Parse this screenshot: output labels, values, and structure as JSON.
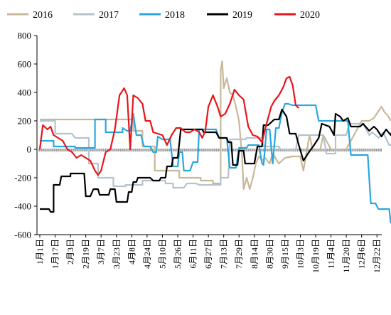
{
  "chart_data": {
    "type": "line",
    "title": "",
    "xlabel": "",
    "ylabel": "",
    "ylim": [
      -600,
      800
    ],
    "yticks": [
      800,
      600,
      400,
      200,
      0,
      -200,
      -400,
      -600
    ],
    "grid": false,
    "legend_position": "top",
    "categories": [
      "1月1日",
      "1月17日",
      "2月3日",
      "2月19日",
      "3月7日",
      "3月23日",
      "4月8日",
      "4月24日",
      "5月10日",
      "5月26日",
      "6月11日",
      "6月27日",
      "7月13日",
      "7月29日",
      "8月14日",
      "8月30日",
      "9月15日",
      "10月3日",
      "10月19日",
      "11月4日",
      "11月20日",
      "12月6日",
      "12月22日"
    ],
    "series": [
      {
        "name": "2016",
        "color": "#c8b89a",
        "points": [
          [
            0,
            210
          ],
          [
            6.1,
            210
          ],
          [
            6.1,
            130
          ],
          [
            6.7,
            130
          ],
          [
            6.7,
            20
          ],
          [
            7.5,
            20
          ],
          [
            7.5,
            -150
          ],
          [
            9.1,
            -150
          ],
          [
            9.1,
            -200
          ],
          [
            10.5,
            -200
          ],
          [
            10.5,
            -220
          ],
          [
            11.3,
            -220
          ],
          [
            11.3,
            -240
          ],
          [
            11.8,
            -240
          ],
          [
            11.8,
            550
          ],
          [
            11.9,
            620
          ],
          [
            12.0,
            430
          ],
          [
            12.2,
            500
          ],
          [
            12.4,
            400
          ],
          [
            12.6,
            380
          ],
          [
            12.8,
            300
          ],
          [
            13.0,
            200
          ],
          [
            13.2,
            -50
          ],
          [
            13.3,
            -280
          ],
          [
            13.5,
            -200
          ],
          [
            13.7,
            -280
          ],
          [
            13.9,
            -200
          ],
          [
            14.1,
            -100
          ],
          [
            14.3,
            -50
          ],
          [
            14.5,
            -80
          ],
          [
            14.7,
            -60
          ],
          [
            15.0,
            -100
          ],
          [
            15.2,
            -30
          ],
          [
            15.6,
            -100
          ],
          [
            16.0,
            -60
          ],
          [
            16.5,
            -50
          ],
          [
            17.0,
            -50
          ],
          [
            17.2,
            -150
          ],
          [
            17.6,
            100
          ],
          [
            17.8,
            0
          ],
          [
            18.3,
            0
          ],
          [
            18.5,
            100
          ],
          [
            19.0,
            0
          ],
          [
            19.6,
            0
          ],
          [
            20.0,
            0
          ],
          [
            20.5,
            100
          ],
          [
            21.0,
            200
          ],
          [
            21.5,
            200
          ],
          [
            21.8,
            220
          ],
          [
            22.3,
            300
          ],
          [
            22.5,
            260
          ],
          [
            22.7,
            240
          ],
          [
            22.9,
            200
          ]
        ]
      },
      {
        "name": "2017",
        "color": "#b5c3ce",
        "points": [
          [
            0,
            200
          ],
          [
            1.0,
            200
          ],
          [
            1.0,
            110
          ],
          [
            2.1,
            110
          ],
          [
            2.3,
            80
          ],
          [
            3.2,
            80
          ],
          [
            3.2,
            -100
          ],
          [
            3.8,
            -100
          ],
          [
            3.8,
            -200
          ],
          [
            4.8,
            -200
          ],
          [
            4.8,
            -260
          ],
          [
            5.6,
            -260
          ],
          [
            5.6,
            -250
          ],
          [
            6.7,
            -250
          ],
          [
            6.7,
            -220
          ],
          [
            8.2,
            -220
          ],
          [
            8.2,
            -240
          ],
          [
            8.7,
            -240
          ],
          [
            8.7,
            -270
          ],
          [
            9.4,
            -270
          ],
          [
            9.6,
            -240
          ],
          [
            10.2,
            -240
          ],
          [
            10.4,
            -250
          ],
          [
            11.3,
            -250
          ],
          [
            11.3,
            -250
          ],
          [
            11.8,
            -250
          ],
          [
            11.8,
            -200
          ],
          [
            12.3,
            -200
          ],
          [
            12.4,
            70
          ],
          [
            13.4,
            70
          ],
          [
            13.5,
            80
          ],
          [
            14.5,
            80
          ],
          [
            14.6,
            20
          ],
          [
            15.6,
            20
          ],
          [
            15.7,
            0
          ],
          [
            16.7,
            0
          ],
          [
            16.9,
            100
          ],
          [
            17.7,
            100
          ],
          [
            17.9,
            100
          ],
          [
            18.5,
            100
          ],
          [
            18.7,
            -30
          ],
          [
            19.3,
            -30
          ],
          [
            19.3,
            100
          ],
          [
            20.0,
            100
          ],
          [
            20.2,
            180
          ],
          [
            20.9,
            180
          ],
          [
            21.1,
            180
          ],
          [
            21.5,
            100
          ],
          [
            21.7,
            120
          ],
          [
            22.1,
            80
          ],
          [
            22.4,
            120
          ],
          [
            22.8,
            30
          ],
          [
            23.0,
            30
          ]
        ]
      },
      {
        "name": "2018",
        "color": "#2aa7df",
        "points": [
          [
            0,
            60
          ],
          [
            0.9,
            60
          ],
          [
            0.9,
            20
          ],
          [
            2.3,
            20
          ],
          [
            2.3,
            10
          ],
          [
            3.6,
            10
          ],
          [
            3.6,
            210
          ],
          [
            4.3,
            210
          ],
          [
            4.3,
            120
          ],
          [
            5.4,
            120
          ],
          [
            5.4,
            150
          ],
          [
            5.7,
            130
          ],
          [
            5.9,
            130
          ],
          [
            6.1,
            250
          ],
          [
            6.3,
            100
          ],
          [
            6.6,
            100
          ],
          [
            6.8,
            20
          ],
          [
            7.2,
            20
          ],
          [
            7.4,
            -20
          ],
          [
            7.6,
            -20
          ],
          [
            7.7,
            90
          ],
          [
            8.0,
            70
          ],
          [
            8.5,
            70
          ],
          [
            8.7,
            -120
          ],
          [
            9.0,
            -120
          ],
          [
            9.1,
            -20
          ],
          [
            9.3,
            -20
          ],
          [
            9.4,
            -150
          ],
          [
            9.8,
            -150
          ],
          [
            10.0,
            -90
          ],
          [
            10.3,
            -90
          ],
          [
            10.4,
            140
          ],
          [
            11.5,
            140
          ],
          [
            11.7,
            80
          ],
          [
            12.2,
            80
          ],
          [
            12.4,
            -130
          ],
          [
            12.8,
            -130
          ],
          [
            13.0,
            10
          ],
          [
            13.5,
            10
          ],
          [
            13.6,
            30
          ],
          [
            14.3,
            30
          ],
          [
            14.5,
            -100
          ],
          [
            14.6,
            -110
          ],
          [
            14.8,
            140
          ],
          [
            15.0,
            140
          ],
          [
            15.2,
            -100
          ],
          [
            15.4,
            150
          ],
          [
            15.6,
            150
          ],
          [
            15.8,
            260
          ],
          [
            16.0,
            320
          ],
          [
            16.2,
            320
          ],
          [
            16.5,
            310
          ],
          [
            17.1,
            310
          ],
          [
            17.3,
            310
          ],
          [
            17.5,
            310
          ],
          [
            18.0,
            310
          ],
          [
            18.2,
            200
          ],
          [
            19.3,
            200
          ],
          [
            19.7,
            200
          ],
          [
            20.1,
            200
          ],
          [
            20.3,
            -40
          ],
          [
            20.6,
            -40
          ],
          [
            20.8,
            -40
          ],
          [
            21.4,
            -40
          ],
          [
            21.6,
            -380
          ],
          [
            21.9,
            -380
          ],
          [
            22.1,
            -420
          ],
          [
            22.8,
            -420
          ],
          [
            22.9,
            -520
          ]
        ]
      },
      {
        "name": "2019",
        "color": "#000000",
        "points": [
          [
            0,
            -420
          ],
          [
            0.6,
            -420
          ],
          [
            0.7,
            -440
          ],
          [
            0.9,
            -440
          ],
          [
            0.9,
            -250
          ],
          [
            1.3,
            -250
          ],
          [
            1.4,
            -190
          ],
          [
            2.0,
            -190
          ],
          [
            2.0,
            -170
          ],
          [
            2.9,
            -170
          ],
          [
            3.0,
            -330
          ],
          [
            3.3,
            -330
          ],
          [
            3.5,
            -280
          ],
          [
            3.8,
            -280
          ],
          [
            3.9,
            -320
          ],
          [
            4.5,
            -320
          ],
          [
            4.6,
            -280
          ],
          [
            4.9,
            -280
          ],
          [
            5.0,
            -370
          ],
          [
            5.7,
            -370
          ],
          [
            5.8,
            -300
          ],
          [
            6.0,
            -300
          ],
          [
            6.1,
            -230
          ],
          [
            6.3,
            -230
          ],
          [
            6.4,
            -200
          ],
          [
            7.2,
            -200
          ],
          [
            7.4,
            -220
          ],
          [
            7.8,
            -220
          ],
          [
            7.9,
            -200
          ],
          [
            8.2,
            -200
          ],
          [
            8.3,
            -120
          ],
          [
            8.6,
            -120
          ],
          [
            8.7,
            -60
          ],
          [
            9.0,
            -60
          ],
          [
            9.2,
            140
          ],
          [
            10.6,
            140
          ],
          [
            10.7,
            120
          ],
          [
            11.5,
            120
          ],
          [
            11.7,
            80
          ],
          [
            12.2,
            80
          ],
          [
            12.3,
            50
          ],
          [
            12.5,
            50
          ],
          [
            12.6,
            -110
          ],
          [
            12.9,
            -110
          ],
          [
            13.0,
            -10
          ],
          [
            13.3,
            -10
          ],
          [
            13.4,
            -100
          ],
          [
            14.0,
            -100
          ],
          [
            14.2,
            20
          ],
          [
            14.5,
            20
          ],
          [
            14.6,
            170
          ],
          [
            14.9,
            170
          ],
          [
            15.3,
            210
          ],
          [
            15.6,
            210
          ],
          [
            15.8,
            280
          ],
          [
            16.1,
            230
          ],
          [
            16.3,
            110
          ],
          [
            16.7,
            110
          ],
          [
            16.9,
            30
          ],
          [
            17.2,
            -80
          ],
          [
            17.5,
            -30
          ],
          [
            17.9,
            30
          ],
          [
            18.2,
            80
          ],
          [
            18.4,
            180
          ],
          [
            18.9,
            160
          ],
          [
            19.2,
            100
          ],
          [
            19.3,
            250
          ],
          [
            19.6,
            230
          ],
          [
            19.8,
            200
          ],
          [
            20.1,
            220
          ],
          [
            20.3,
            160
          ],
          [
            20.9,
            160
          ],
          [
            21.1,
            180
          ],
          [
            21.5,
            130
          ],
          [
            21.8,
            160
          ],
          [
            22.0,
            140
          ],
          [
            22.3,
            90
          ],
          [
            22.6,
            140
          ],
          [
            22.9,
            100
          ],
          [
            23.0,
            130
          ]
        ]
      },
      {
        "name": "2020",
        "color": "#e8141b",
        "points": [
          [
            0,
            0
          ],
          [
            0.2,
            170
          ],
          [
            0.5,
            140
          ],
          [
            0.7,
            160
          ],
          [
            0.9,
            100
          ],
          [
            1.2,
            80
          ],
          [
            1.5,
            60
          ],
          [
            1.8,
            0
          ],
          [
            2.1,
            -20
          ],
          [
            2.4,
            -60
          ],
          [
            2.7,
            -40
          ],
          [
            3.0,
            -60
          ],
          [
            3.3,
            -80
          ],
          [
            3.6,
            -150
          ],
          [
            3.8,
            -180
          ],
          [
            4.0,
            -150
          ],
          [
            4.3,
            -20
          ],
          [
            4.6,
            0
          ],
          [
            4.9,
            140
          ],
          [
            5.2,
            380
          ],
          [
            5.5,
            430
          ],
          [
            5.7,
            380
          ],
          [
            5.9,
            0
          ],
          [
            6.1,
            380
          ],
          [
            6.4,
            360
          ],
          [
            6.7,
            320
          ],
          [
            6.9,
            200
          ],
          [
            7.2,
            200
          ],
          [
            7.4,
            120
          ],
          [
            7.7,
            110
          ],
          [
            8.0,
            100
          ],
          [
            8.3,
            30
          ],
          [
            8.6,
            100
          ],
          [
            8.9,
            150
          ],
          [
            9.2,
            150
          ],
          [
            9.5,
            120
          ],
          [
            9.8,
            120
          ],
          [
            10.1,
            140
          ],
          [
            10.4,
            120
          ],
          [
            10.6,
            80
          ],
          [
            10.8,
            130
          ],
          [
            11.0,
            300
          ],
          [
            11.3,
            380
          ],
          [
            11.6,
            300
          ],
          [
            11.8,
            230
          ],
          [
            12.1,
            250
          ],
          [
            12.4,
            320
          ],
          [
            12.7,
            420
          ],
          [
            13.0,
            380
          ],
          [
            13.3,
            350
          ],
          [
            13.6,
            160
          ],
          [
            13.9,
            100
          ],
          [
            14.2,
            90
          ],
          [
            14.5,
            50
          ],
          [
            14.8,
            180
          ],
          [
            15.1,
            300
          ],
          [
            15.3,
            340
          ],
          [
            15.6,
            380
          ],
          [
            15.9,
            440
          ],
          [
            16.1,
            500
          ],
          [
            16.3,
            510
          ],
          [
            16.5,
            450
          ],
          [
            16.7,
            310
          ],
          [
            16.9,
            290
          ]
        ]
      }
    ]
  }
}
